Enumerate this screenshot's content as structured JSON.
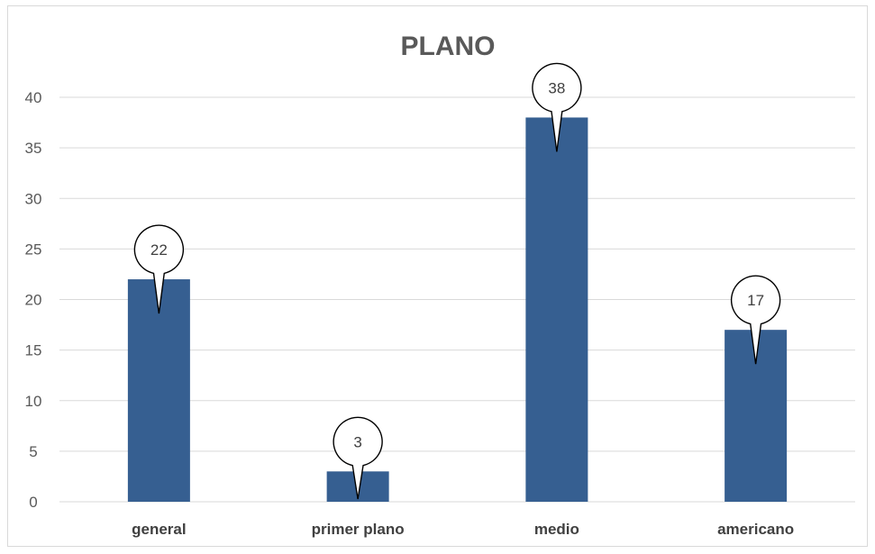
{
  "chart_data": {
    "type": "bar",
    "title": "PLANO",
    "categories": [
      "general",
      "primer plano",
      "medio",
      "americano"
    ],
    "values": [
      22,
      3,
      38,
      17
    ],
    "ylim": [
      0,
      40
    ],
    "yticks": [
      0,
      5,
      10,
      15,
      20,
      25,
      30,
      35,
      40
    ],
    "xlabel": "",
    "ylabel": "",
    "grid": true,
    "legend": "none",
    "bar_color": "#365f91",
    "data_labels": "callout"
  }
}
